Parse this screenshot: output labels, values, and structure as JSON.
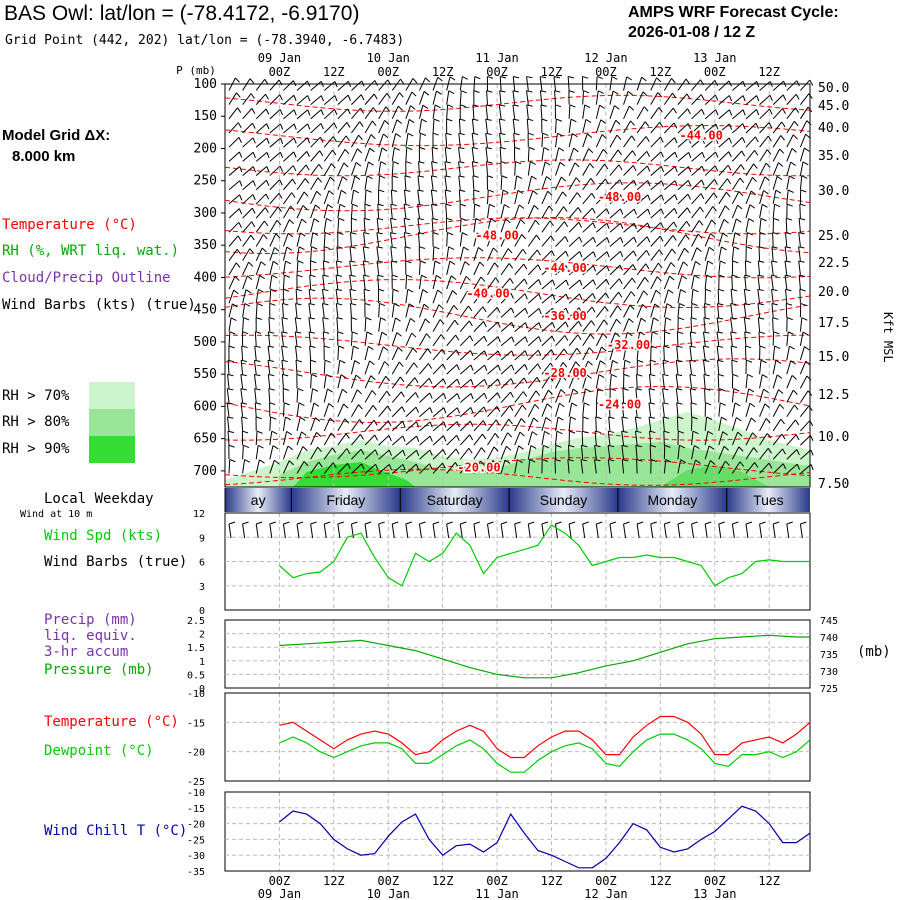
{
  "header": {
    "title": "BAS Owl:  lat/lon = (-78.4172, -6.9170)",
    "subtitle": "Grid Point (442, 202) lat/lon = (-78.3940, -6.7483)",
    "cycle_line1": "AMPS WRF Forecast Cycle:",
    "cycle_line2": "2026-01-08 / 12  Z"
  },
  "sidebar": {
    "model_grid_label": "Model Grid ΔX:",
    "model_grid_value": "8.000 km",
    "temperature_label": "Temperature (°C)",
    "rh_label": "RH (%, WRT liq. wat.)",
    "cloud_label": "Cloud/Precip Outline",
    "wind_label": "Wind Barbs (kts) (true)",
    "rh_legend": [
      {
        "label": "RH > 70%",
        "color": "#ccf5cc"
      },
      {
        "label": "RH > 80%",
        "color": "#99e699"
      },
      {
        "label": "RH > 90%",
        "color": "#33dd33"
      }
    ],
    "local_weekday": "Local Weekday",
    "wind_at_10m": "Wind at 10 m",
    "wind_spd_label": "Wind Spd (kts)",
    "wind_barbs_label": "Wind Barbs (true)",
    "precip_label1": "Precip (mm)",
    "precip_label2": "liq. equiv.",
    "precip_label3": "3-hr accum",
    "pressure_label": "Pressure (mb)",
    "temp_panel_label": "Temperature (°C)",
    "dewpoint_label": "Dewpoint (°C)",
    "windchill_label": "Wind Chill T (°C)"
  },
  "colors": {
    "temperature": "#ff0000",
    "dewpoint": "#00cc00",
    "windspeed": "#00cc00",
    "pressure": "#00aa00",
    "windchill": "#0000aa",
    "precip_label": "#7733aa",
    "weekday_bar": "#2a3a8a"
  },
  "time_axis": {
    "top_dates": [
      "09 Jan",
      "10 Jan",
      "11 Jan",
      "12 Jan",
      "13 Jan"
    ],
    "hours": [
      "00Z",
      "12Z",
      "00Z",
      "12Z",
      "00Z",
      "12Z",
      "00Z",
      "12Z",
      "00Z",
      "12Z"
    ],
    "bottom_dates": [
      "09 Jan",
      "10 Jan",
      "11 Jan",
      "12 Jan",
      "13 Jan"
    ]
  },
  "weekdays": [
    "ay",
    "Friday",
    "Saturday",
    "Sunday",
    "Monday",
    "Tues"
  ],
  "chart_data": [
    {
      "type": "heatmap",
      "ylabel": "P (mb)",
      "y_ticks": [
        100,
        150,
        200,
        250,
        300,
        350,
        400,
        450,
        500,
        550,
        600,
        650,
        700
      ],
      "kft_ticks": [
        "50.0",
        "45.0",
        "40.0",
        "35.0",
        "30.0",
        "25.0",
        "22.5",
        "20.0",
        "17.5",
        "15.0",
        "12.5",
        "10.0",
        "7.50"
      ],
      "right_axis_label": "Kft MSL",
      "isotherm_labels": [
        {
          "text": "-44.00",
          "hour": 93,
          "p": 180
        },
        {
          "text": "-48.00",
          "hour": 75,
          "p": 275
        },
        {
          "text": "-48.00",
          "hour": 48,
          "p": 335
        },
        {
          "text": "-44.00",
          "hour": 63,
          "p": 385
        },
        {
          "text": "-40.00",
          "hour": 46,
          "p": 425
        },
        {
          "text": "-36.00",
          "hour": 63,
          "p": 460
        },
        {
          "text": "-32.00",
          "hour": 77,
          "p": 505
        },
        {
          "text": "-28.00",
          "hour": 63,
          "p": 548
        },
        {
          "text": "-24.00",
          "hour": 75,
          "p": 597
        },
        {
          "text": "-20.00",
          "hour": 44,
          "p": 695
        }
      ]
    },
    {
      "type": "line",
      "name": "Wind Spd (kts)",
      "yticks": [
        0,
        3,
        6,
        9,
        12
      ],
      "x_hours": [
        0,
        3,
        6,
        9,
        12,
        15,
        18,
        21,
        24,
        27,
        30,
        33,
        36,
        39,
        42,
        45,
        48,
        51,
        54,
        57,
        60,
        63,
        66,
        69,
        72,
        75,
        78,
        81,
        84,
        87,
        90,
        93,
        96,
        99,
        102,
        105,
        108,
        111,
        114,
        117
      ],
      "values": [
        5.5,
        4,
        4.5,
        4.7,
        6,
        9,
        9.5,
        6.5,
        4,
        3,
        7,
        6,
        7,
        9.5,
        8,
        4.5,
        6.5,
        7,
        7.5,
        8,
        10.5,
        9.5,
        8,
        5.5,
        6,
        6.5,
        6.5,
        6.8,
        6.5,
        6.5,
        6,
        5.5,
        3,
        4,
        4.5,
        6,
        6.2,
        6,
        6,
        6
      ]
    },
    {
      "type": "line",
      "name": "Pressure (mb)",
      "yticks": [
        0,
        0.5,
        1,
        1.5,
        2,
        2.5
      ],
      "y2ticks": [
        725,
        730,
        735,
        740,
        745
      ],
      "x_hours": [
        0,
        6,
        12,
        18,
        24,
        30,
        36,
        42,
        48,
        54,
        60,
        66,
        72,
        78,
        84,
        90,
        96,
        102,
        108,
        114,
        117
      ],
      "values": [
        737.5,
        738,
        738.5,
        739,
        737.5,
        736,
        733.5,
        731,
        729,
        728,
        728,
        729.5,
        731.5,
        733,
        735.5,
        738,
        739.5,
        740,
        740.5,
        740,
        740
      ]
    },
    {
      "type": "line",
      "yticks": [
        -25,
        -20,
        -15,
        -10
      ],
      "x_hours": [
        0,
        3,
        6,
        9,
        12,
        15,
        18,
        21,
        24,
        27,
        30,
        33,
        36,
        39,
        42,
        45,
        48,
        51,
        54,
        57,
        60,
        63,
        66,
        69,
        72,
        75,
        78,
        81,
        84,
        87,
        90,
        93,
        96,
        99,
        102,
        105,
        108,
        111,
        114,
        117
      ],
      "series": [
        {
          "name": "Temperature (°C)",
          "values": [
            -15.5,
            -15,
            -16.5,
            -18,
            -19.5,
            -18,
            -17,
            -16.5,
            -17,
            -18.5,
            -20.5,
            -20,
            -18,
            -16.5,
            -15.5,
            -16.5,
            -19.5,
            -21,
            -21,
            -19,
            -17.5,
            -16.5,
            -16.5,
            -18,
            -20.5,
            -20.5,
            -17.5,
            -15.5,
            -14,
            -14,
            -15,
            -17,
            -20.5,
            -20.5,
            -18.5,
            -18,
            -17.5,
            -18.5,
            -17,
            -15
          ]
        },
        {
          "name": "Dewpoint (°C)",
          "values": [
            -18.5,
            -17.5,
            -18.5,
            -20,
            -21,
            -20,
            -19,
            -18.5,
            -18.5,
            -19.5,
            -22,
            -22,
            -20.5,
            -19,
            -18,
            -19.5,
            -22,
            -23.5,
            -23.5,
            -21.5,
            -20,
            -19,
            -18.5,
            -19.5,
            -22,
            -22.5,
            -20,
            -18,
            -17,
            -17,
            -18,
            -19.5,
            -22,
            -22.5,
            -20.5,
            -20.5,
            -20,
            -21,
            -20,
            -18
          ]
        }
      ]
    },
    {
      "type": "line",
      "name": "Wind Chill T (°C)",
      "yticks": [
        -35,
        -30,
        -25,
        -20,
        -15,
        -10
      ],
      "x_hours": [
        0,
        3,
        6,
        9,
        12,
        15,
        18,
        21,
        24,
        27,
        30,
        33,
        36,
        39,
        42,
        45,
        48,
        51,
        54,
        57,
        60,
        63,
        66,
        69,
        72,
        75,
        78,
        81,
        84,
        87,
        90,
        93,
        96,
        99,
        102,
        105,
        108,
        111,
        114,
        117
      ],
      "values": [
        -19.5,
        -16,
        -17,
        -20,
        -25,
        -28,
        -30,
        -29.5,
        -24,
        -19.5,
        -17,
        -25,
        -30,
        -27,
        -26.5,
        -29,
        -26,
        -17,
        -23,
        -28.5,
        -30,
        -32,
        -34,
        -34,
        -31,
        -26,
        -20,
        -22,
        -27.5,
        -29,
        -28,
        -25,
        -22.5,
        -18.5,
        -14.5,
        -16,
        -20,
        -26,
        -26,
        -23
      ]
    }
  ]
}
